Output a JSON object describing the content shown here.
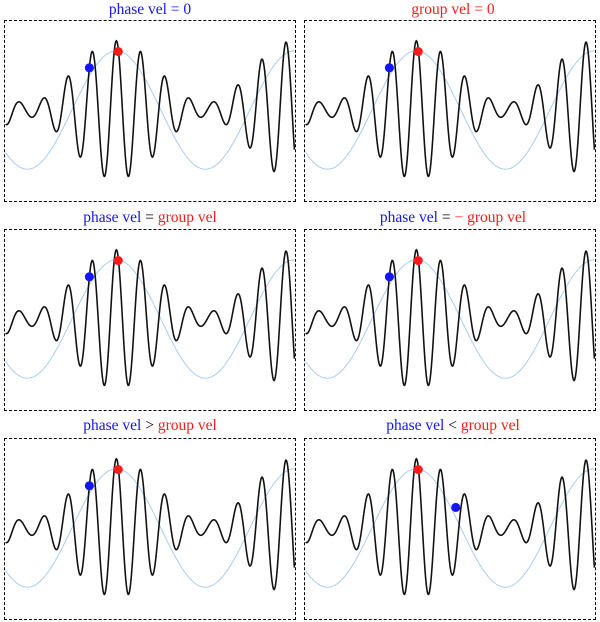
{
  "panels": [
    {
      "title_parts": [
        {
          "text": "phase vel = 0",
          "color": "blue"
        }
      ],
      "red_dot": [
        0.39,
        0.17
      ],
      "blue_dot": [
        0.29,
        0.26
      ]
    },
    {
      "title_parts": [
        {
          "text": "group vel = 0",
          "color": "red"
        }
      ],
      "red_dot": [
        0.39,
        0.17
      ],
      "blue_dot": [
        0.29,
        0.26
      ]
    },
    {
      "title_parts": [
        {
          "text": "phase vel",
          "color": "blue"
        },
        {
          "text": " = ",
          "color": "black"
        },
        {
          "text": "group vel",
          "color": "red"
        }
      ],
      "red_dot": [
        0.39,
        0.17
      ],
      "blue_dot": [
        0.29,
        0.26
      ]
    },
    {
      "title_parts": [
        {
          "text": "phase vel",
          "color": "blue"
        },
        {
          "text": " = ",
          "color": "black"
        },
        {
          "text": "− group vel",
          "color": "red"
        }
      ],
      "red_dot": [
        0.39,
        0.17
      ],
      "blue_dot": [
        0.29,
        0.26
      ]
    },
    {
      "title_parts": [
        {
          "text": "phase vel",
          "color": "blue"
        },
        {
          "text": " > ",
          "color": "black"
        },
        {
          "text": "group vel",
          "color": "red"
        }
      ],
      "red_dot": [
        0.39,
        0.17
      ],
      "blue_dot": [
        0.29,
        0.26
      ]
    },
    {
      "title_parts": [
        {
          "text": "phase vel",
          "color": "blue"
        },
        {
          "text": " < ",
          "color": "black"
        },
        {
          "text": "group vel",
          "color": "red"
        }
      ],
      "red_dot": [
        0.39,
        0.17
      ],
      "blue_dot": [
        0.52,
        0.38
      ]
    }
  ],
  "colors": {
    "blue": "#1414ff",
    "red": "#ff1a1a",
    "wave": "#111111",
    "envelope": "#a9cdf0"
  }
}
